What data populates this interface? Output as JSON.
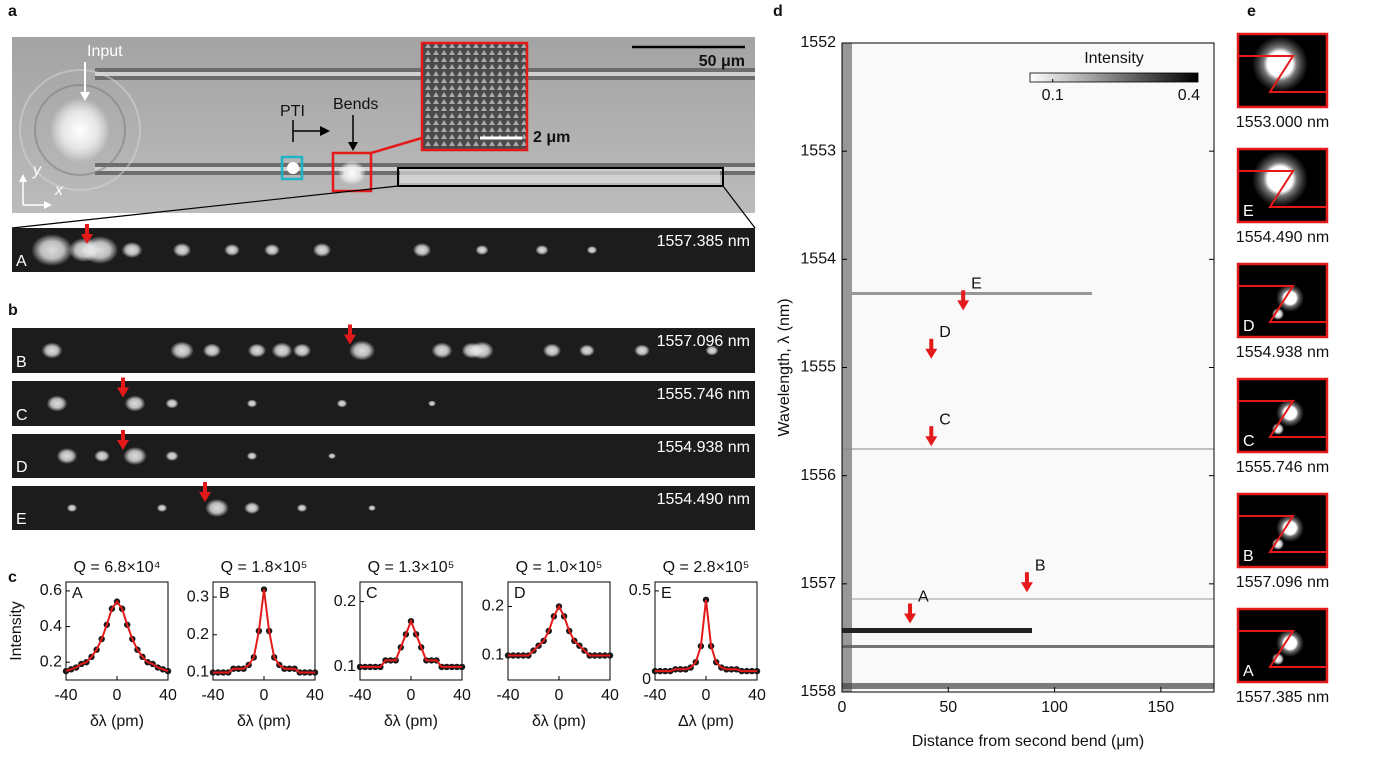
{
  "panel_labels": [
    "a",
    "b",
    "c",
    "d",
    "e"
  ],
  "panel_a": {
    "input": "Input",
    "pti": "PTI",
    "bends": "Bends",
    "axis_y": "y",
    "axis_x": "x",
    "scale_bar": "50 μm",
    "inset_scale_bar": "2 μm",
    "strip": {
      "letter": "A",
      "wavelength": "1557.385 nm"
    }
  },
  "panel_b": {
    "strips": [
      {
        "letter": "B",
        "wavelength": "1557.096 nm"
      },
      {
        "letter": "C",
        "wavelength": "1555.746 nm"
      },
      {
        "letter": "D",
        "wavelength": "1554.938 nm"
      },
      {
        "letter": "E",
        "wavelength": "1554.490 nm"
      }
    ]
  },
  "panel_e": {
    "images": [
      {
        "wavelength": "1553.000 nm"
      },
      {
        "letter": "E",
        "wavelength": "1554.490 nm"
      },
      {
        "letter": "D",
        "wavelength": "1554.938 nm"
      },
      {
        "letter": "C",
        "wavelength": "1555.746 nm"
      },
      {
        "letter": "B",
        "wavelength": "1557.096 nm"
      },
      {
        "letter": "A",
        "wavelength": "1557.385 nm"
      }
    ]
  },
  "chart_data": [
    {
      "type": "scatter",
      "title": "Q = 6.8×10⁴",
      "label": "A",
      "ylabel": "Intensity",
      "xlabel": "δλ (pm)",
      "x": [
        -40,
        -36,
        -32,
        -28,
        -24,
        -20,
        -16,
        -12,
        -8,
        -4,
        0,
        4,
        8,
        12,
        16,
        20,
        24,
        28,
        32,
        36,
        40
      ],
      "values": [
        0.15,
        0.16,
        0.17,
        0.19,
        0.2,
        0.23,
        0.27,
        0.33,
        0.41,
        0.5,
        0.54,
        0.5,
        0.41,
        0.33,
        0.27,
        0.23,
        0.2,
        0.19,
        0.17,
        0.16,
        0.15
      ],
      "point_color": "#1a1a1a",
      "fit_color": "#e41a1a",
      "xlim": [
        -40,
        40
      ],
      "xticks": [
        -40,
        0,
        40
      ],
      "ylim": [
        0.1,
        0.65
      ],
      "yticks": [
        0.2,
        0.4,
        0.6
      ]
    },
    {
      "type": "scatter",
      "title": "Q = 1.8×10⁵",
      "label": "B",
      "xlabel": "δλ (pm)",
      "x": [
        -40,
        -36,
        -32,
        -28,
        -24,
        -20,
        -16,
        -12,
        -8,
        -4,
        0,
        4,
        8,
        12,
        16,
        20,
        24,
        28,
        32,
        36,
        40
      ],
      "values": [
        0.1,
        0.1,
        0.1,
        0.1,
        0.11,
        0.11,
        0.11,
        0.12,
        0.14,
        0.21,
        0.32,
        0.21,
        0.14,
        0.12,
        0.11,
        0.11,
        0.11,
        0.1,
        0.1,
        0.1,
        0.1
      ],
      "point_color": "#1a1a1a",
      "fit_color": "#e41a1a",
      "xlim": [
        -40,
        40
      ],
      "xticks": [
        -40,
        0,
        40
      ],
      "ylim": [
        0.08,
        0.34
      ],
      "yticks": [
        0.1,
        0.2,
        0.3
      ]
    },
    {
      "type": "scatter",
      "title": "Q = 1.3×10⁵",
      "label": "C",
      "xlabel": "δλ (pm)",
      "x": [
        -40,
        -36,
        -32,
        -28,
        -24,
        -20,
        -16,
        -12,
        -8,
        -4,
        0,
        4,
        8,
        12,
        16,
        20,
        24,
        28,
        32,
        36,
        40
      ],
      "values": [
        0.1,
        0.1,
        0.1,
        0.1,
        0.1,
        0.11,
        0.11,
        0.11,
        0.13,
        0.15,
        0.17,
        0.15,
        0.13,
        0.11,
        0.11,
        0.11,
        0.1,
        0.1,
        0.1,
        0.1,
        0.1
      ],
      "point_color": "#1a1a1a",
      "fit_color": "#e41a1a",
      "xlim": [
        -40,
        40
      ],
      "xticks": [
        -40,
        0,
        40
      ],
      "ylim": [
        0.08,
        0.23
      ],
      "yticks": [
        0.1,
        0.2
      ]
    },
    {
      "type": "scatter",
      "title": "Q = 1.0×10⁵",
      "label": "D",
      "xlabel": "δλ (pm)",
      "x": [
        -40,
        -36,
        -32,
        -28,
        -24,
        -20,
        -16,
        -12,
        -8,
        -4,
        0,
        4,
        8,
        12,
        16,
        20,
        24,
        28,
        32,
        36,
        40
      ],
      "values": [
        0.1,
        0.1,
        0.1,
        0.1,
        0.1,
        0.11,
        0.12,
        0.13,
        0.15,
        0.18,
        0.2,
        0.18,
        0.15,
        0.13,
        0.12,
        0.11,
        0.1,
        0.1,
        0.1,
        0.1,
        0.1
      ],
      "point_color": "#1a1a1a",
      "fit_color": "#e41a1a",
      "xlim": [
        -40,
        40
      ],
      "xticks": [
        -40,
        0,
        40
      ],
      "ylim": [
        0.05,
        0.25
      ],
      "yticks": [
        0.1,
        0.2
      ]
    },
    {
      "type": "scatter",
      "title": "Q = 2.8×10⁵",
      "label": "E",
      "xlabel": "Δλ (pm)",
      "x": [
        -40,
        -36,
        -32,
        -28,
        -24,
        -20,
        -16,
        -12,
        -8,
        -4,
        0,
        4,
        8,
        12,
        16,
        20,
        24,
        28,
        32,
        36,
        40
      ],
      "values": [
        0.05,
        0.05,
        0.05,
        0.05,
        0.06,
        0.06,
        0.06,
        0.07,
        0.1,
        0.19,
        0.45,
        0.19,
        0.1,
        0.07,
        0.06,
        0.06,
        0.06,
        0.05,
        0.05,
        0.05,
        0.05
      ],
      "point_color": "#1a1a1a",
      "fit_color": "#e41a1a",
      "xlim": [
        -40,
        40
      ],
      "xticks": [
        -40,
        0,
        40
      ],
      "ylim": [
        0,
        0.55
      ],
      "yticks": [
        0,
        0.5
      ]
    },
    {
      "type": "heatmap",
      "xlabel": "Distance from second bend (μm)",
      "ylabel": "Wavelength, λ (nm)",
      "xlim": [
        0,
        175
      ],
      "xticks": [
        0,
        50,
        100,
        150
      ],
      "ylim": [
        1552,
        1558
      ],
      "yticks": [
        1552,
        1553,
        1554,
        1555,
        1556,
        1557,
        1558
      ],
      "colorbar": {
        "title": "Intensity",
        "lim": [
          0.05,
          0.42
        ],
        "ticks": [
          0.1,
          0.4
        ]
      },
      "arrow_color": "#e41a1a",
      "annotations": [
        {
          "label": "A",
          "x": 32,
          "y": 1557.385
        },
        {
          "label": "B",
          "x": 87,
          "y": 1557.096
        },
        {
          "label": "C",
          "x": 42,
          "y": 1555.746
        },
        {
          "label": "D",
          "x": 42,
          "y": 1554.938
        },
        {
          "label": "E",
          "x": 57,
          "y": 1554.49
        }
      ]
    }
  ]
}
